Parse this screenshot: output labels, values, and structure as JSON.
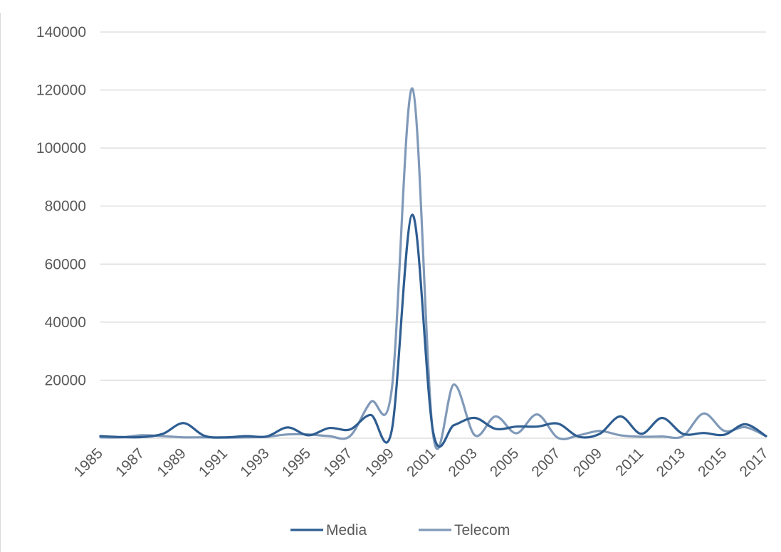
{
  "chart_data": {
    "type": "line",
    "title": "",
    "xlabel": "",
    "ylabel": "",
    "ylim": [
      0,
      140000
    ],
    "yticks": [
      0,
      20000,
      40000,
      60000,
      80000,
      100000,
      120000,
      140000
    ],
    "ytick_labels": [
      "",
      "20000",
      "40000",
      "60000",
      "80000",
      "100000",
      "120000",
      "140000"
    ],
    "x": [
      1985,
      1986,
      1987,
      1988,
      1989,
      1990,
      1991,
      1992,
      1993,
      1994,
      1995,
      1996,
      1997,
      1998,
      1999,
      2000,
      2001,
      2002,
      2003,
      2004,
      2005,
      2006,
      2007,
      2008,
      2009,
      2010,
      2011,
      2012,
      2013,
      2014,
      2015,
      2016,
      2017
    ],
    "xtick_labels": [
      "1985",
      "1987",
      "1989",
      "1991",
      "1993",
      "1995",
      "1997",
      "1999",
      "2001",
      "2003",
      "2005",
      "2007",
      "2009",
      "2011",
      "2013",
      "2015",
      "2017"
    ],
    "grid": true,
    "legend": "bottom",
    "series": [
      {
        "name": "Media",
        "color": "#2e5d91",
        "values": [
          700,
          400,
          400,
          1500,
          5200,
          800,
          300,
          700,
          600,
          3700,
          1000,
          3500,
          3000,
          8000,
          2500,
          77000,
          2000,
          4500,
          7000,
          3200,
          4000,
          4000,
          5000,
          500,
          1500,
          7500,
          1500,
          7000,
          1500,
          1800,
          1200,
          4800,
          700
        ]
      },
      {
        "name": "Telecom",
        "color": "#8099b8",
        "values": [
          300,
          300,
          1000,
          700,
          300,
          300,
          200,
          300,
          500,
          1300,
          1300,
          700,
          700,
          12500,
          16500,
          120500,
          1000,
          18500,
          1000,
          7500,
          1700,
          8200,
          100,
          1000,
          2500,
          1000,
          500,
          600,
          700,
          8500,
          2500,
          3800,
          700
        ]
      }
    ]
  }
}
